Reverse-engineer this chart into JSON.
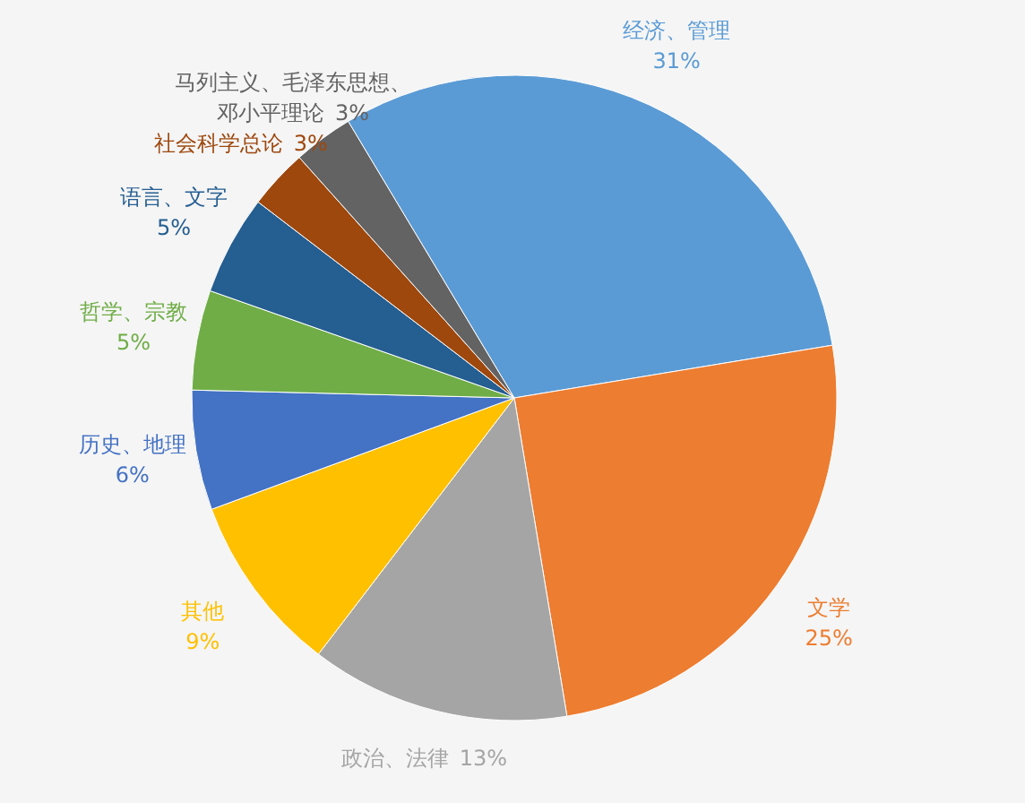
{
  "chart_data": {
    "type": "pie",
    "categories": [
      "经济、管理",
      "文学",
      "政治、法律",
      "其他",
      "历史、地理",
      "哲学、宗教",
      "语言、文字",
      "社会科学总论",
      "马列主义、毛泽东思想、邓小平理论"
    ],
    "values": [
      31,
      25,
      13,
      9,
      6,
      5,
      5,
      3,
      3
    ],
    "value_labels": [
      "31%",
      "25%",
      "13%",
      "9%",
      "6%",
      "5%",
      "5%",
      "3%",
      "3%"
    ],
    "colors": [
      "#5b9bd5",
      "#ed7d31",
      "#a5a5a5",
      "#ffc000",
      "#4472c4",
      "#70ad47",
      "#255e91",
      "#9e480e",
      "#636363"
    ]
  }
}
